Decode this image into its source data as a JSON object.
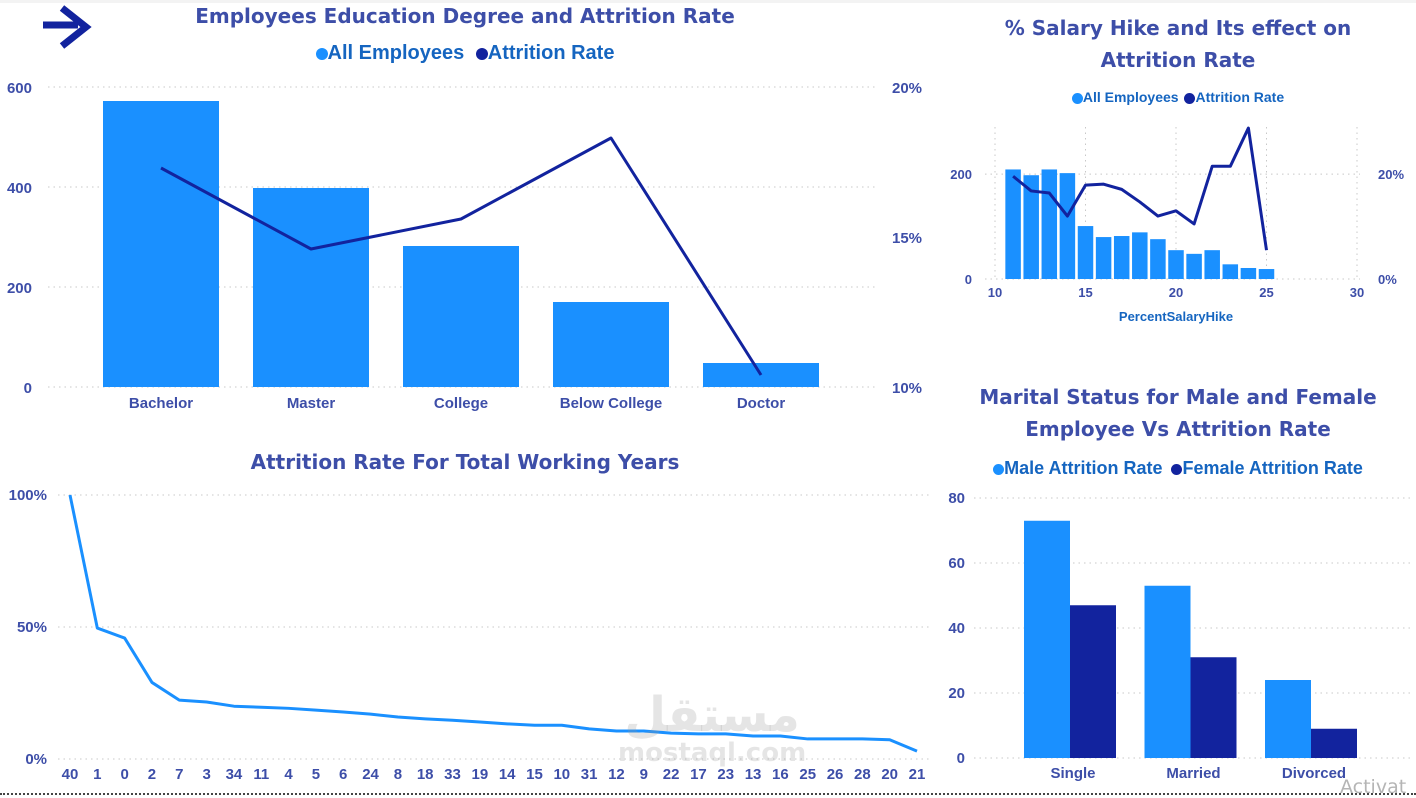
{
  "nav": {
    "arrow_icon": "arrow-right-icon"
  },
  "colors": {
    "light_blue": "#1a90ff",
    "dark_blue": "#12239e",
    "title": "#3d4ea8",
    "legend_text": "#1565c0",
    "axis_text": "#3d4ea8"
  },
  "watermark": {
    "arabic": "مستقل",
    "latin": "mostaql.com"
  },
  "os_overlay": {
    "activate": "Activat"
  },
  "chart_data": [
    {
      "id": "education",
      "type": "bar",
      "title": "Employees Education Degree and Attrition Rate",
      "legend": [
        {
          "name": "All Employees",
          "color": "#1a90ff"
        },
        {
          "name": "Attrition Rate",
          "color": "#12239e"
        }
      ],
      "legend_position": "top-center",
      "categories": [
        "Bachelor",
        "Master",
        "College",
        "Below College",
        "Doctor"
      ],
      "series": [
        {
          "name": "All Employees",
          "type": "bar",
          "axis": "left",
          "values": [
            572,
            398,
            282,
            170,
            48
          ]
        },
        {
          "name": "Attrition Rate",
          "type": "line",
          "axis": "right",
          "unit": "%",
          "values": [
            17.3,
            14.6,
            15.6,
            18.3,
            10.4
          ]
        }
      ],
      "y_left": {
        "ticks": [
          "0",
          "200",
          "400",
          "600"
        ],
        "tick_values": [
          0,
          200,
          400,
          600
        ],
        "range": [
          0,
          600
        ]
      },
      "y_right": {
        "ticks": [
          "10%",
          "15%",
          "20%"
        ],
        "tick_values": [
          10,
          15,
          20
        ],
        "range": [
          10,
          20
        ]
      },
      "grid": true
    },
    {
      "id": "salary_hike",
      "type": "bar",
      "title_lines": [
        "% Salary Hike and Its effect on",
        "Attrition Rate"
      ],
      "legend": [
        {
          "name": "All Employees",
          "color": "#1a90ff"
        },
        {
          "name": "Attrition Rate",
          "color": "#12239e"
        }
      ],
      "legend_position": "top-center",
      "x": [
        11,
        12,
        13,
        14,
        15,
        16,
        17,
        18,
        19,
        20,
        21,
        22,
        23,
        24,
        25
      ],
      "xlabel": "PercentSalaryHike",
      "x_ticks": [
        "10",
        "15",
        "20",
        "25",
        "30"
      ],
      "x_tick_values": [
        10,
        15,
        20,
        25,
        30
      ],
      "x_range": [
        10,
        30
      ],
      "series": [
        {
          "name": "All Employees",
          "type": "bar",
          "axis": "left",
          "values": [
            209,
            198,
            209,
            202,
            101,
            80,
            82,
            89,
            76,
            55,
            48,
            55,
            28,
            21,
            19
          ]
        },
        {
          "name": "Attrition Rate",
          "type": "line",
          "axis": "right",
          "unit": "%",
          "values": [
            19.6,
            16.8,
            16.4,
            12.0,
            17.9,
            18.1,
            17.1,
            14.7,
            12.0,
            13.0,
            10.5,
            21.5,
            21.5,
            28.8,
            5.5
          ]
        }
      ],
      "y_left": {
        "ticks": [
          "0",
          "200"
        ],
        "tick_values": [
          0,
          200
        ],
        "range": [
          0,
          290
        ]
      },
      "y_right": {
        "ticks": [
          "0%",
          "20%"
        ],
        "tick_values": [
          0,
          20
        ],
        "range": [
          0,
          29
        ]
      },
      "grid": true
    },
    {
      "id": "working_years",
      "type": "line",
      "title": "Attrition Rate For Total Working Years",
      "categories": [
        "40",
        "1",
        "0",
        "2",
        "7",
        "3",
        "34",
        "11",
        "4",
        "5",
        "6",
        "24",
        "8",
        "18",
        "33",
        "19",
        "14",
        "15",
        "10",
        "31",
        "12",
        "9",
        "22",
        "17",
        "23",
        "13",
        "16",
        "25",
        "26",
        "28",
        "20",
        "21"
      ],
      "series": [
        {
          "name": "Attrition Rate",
          "unit": "%",
          "color": "#1a90ff",
          "values": [
            100,
            49.6,
            45.8,
            29.0,
            22.3,
            21.6,
            20.0,
            19.6,
            19.2,
            18.5,
            17.8,
            17.0,
            15.9,
            15.2,
            14.7,
            14.0,
            13.3,
            12.8,
            12.8,
            11.4,
            10.6,
            10.6,
            9.8,
            9.5,
            9.5,
            8.7,
            8.7,
            7.6,
            7.6,
            7.6,
            7.3,
            3.0
          ]
        }
      ],
      "y": {
        "ticks": [
          "0%",
          "50%",
          "100%"
        ],
        "tick_values": [
          0,
          50,
          100
        ],
        "range": [
          0,
          100
        ]
      },
      "grid": true
    },
    {
      "id": "marital",
      "type": "bar",
      "title_lines": [
        "Marital Status for Male and Female",
        "Employee Vs Attrition Rate"
      ],
      "legend": [
        {
          "name": "Male Attrition Rate",
          "color": "#1a90ff"
        },
        {
          "name": "Female Attrition Rate",
          "color": "#12239e"
        }
      ],
      "legend_position": "top-center",
      "categories": [
        "Single",
        "Married",
        "Divorced"
      ],
      "series": [
        {
          "name": "Male Attrition Rate",
          "values": [
            73,
            53,
            24
          ]
        },
        {
          "name": "Female Attrition Rate",
          "values": [
            47,
            31,
            9
          ]
        }
      ],
      "y": {
        "ticks": [
          "0",
          "20",
          "40",
          "60",
          "80"
        ],
        "tick_values": [
          0,
          20,
          40,
          60,
          80
        ],
        "range": [
          0,
          80
        ]
      },
      "grid": true
    }
  ]
}
